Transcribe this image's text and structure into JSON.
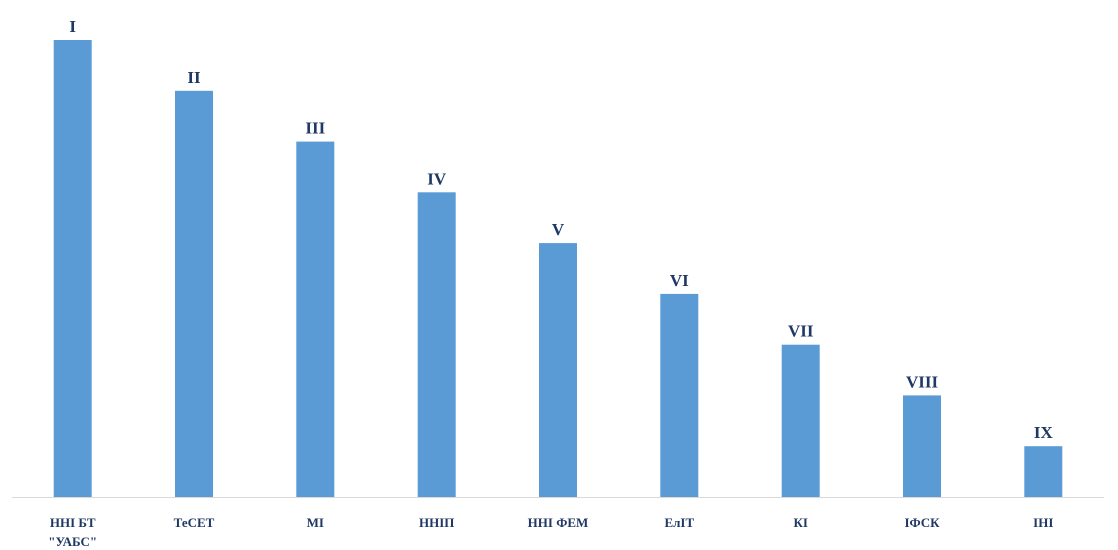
{
  "chart_data": {
    "type": "bar",
    "categories": [
      [
        "ННІ БТ",
        "\"УАБС\""
      ],
      [
        "ТеСЕТ"
      ],
      [
        "МІ"
      ],
      [
        "ННІП"
      ],
      [
        "ННІ ФЕМ"
      ],
      [
        "ЕлІТ"
      ],
      [
        "КІ"
      ],
      [
        "ІФСК"
      ],
      [
        "ІНІ"
      ]
    ],
    "data_labels": [
      "I",
      "II",
      "III",
      "IV",
      "V",
      "VI",
      "VII",
      "VIII",
      "IX"
    ],
    "values": [
      9,
      8,
      7,
      6,
      5,
      4,
      3,
      2,
      1
    ],
    "bar_color": "#5b9bd5",
    "label_color": "#1f3864",
    "axis_color": "#d9d9d9",
    "title": "",
    "xlabel": "",
    "ylabel": "",
    "ylim": [
      0,
      9
    ],
    "grid": false,
    "legend": "none"
  }
}
